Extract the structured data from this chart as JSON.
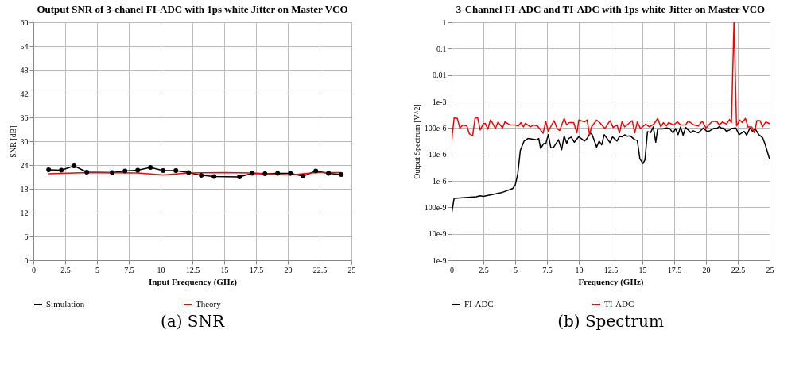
{
  "chart_data": [
    {
      "type": "line",
      "title": "Output SNR of 3-chanel FI-ADC with 1ps white Jitter on Master VCO",
      "xlabel": "Input Frequency (GHz)",
      "ylabel": "SNR [dB]",
      "xlim": [
        0,
        25
      ],
      "xticks": [
        0,
        2.5,
        5,
        7.5,
        10,
        12.5,
        15,
        17.5,
        20,
        22.5,
        25
      ],
      "ylim": [
        0,
        60
      ],
      "yticks": [
        0,
        6,
        12,
        18,
        24,
        30,
        36,
        42,
        48,
        54,
        60
      ],
      "grid": true,
      "legend": "bottom",
      "annotations": [
        "(a) SNR"
      ],
      "series": [
        {
          "name": "Simulation",
          "color": "#000000",
          "marker": "circle",
          "x": [
            1.2,
            2.2,
            3.2,
            4.2,
            6.2,
            7.2,
            8.2,
            9.2,
            10.2,
            11.2,
            12.2,
            13.2,
            14.2,
            16.2,
            17.2,
            18.2,
            19.2,
            20.2,
            21.2,
            22.2,
            23.2,
            24.2
          ],
          "values": [
            22.8,
            22.7,
            23.8,
            22.2,
            22.1,
            22.5,
            22.7,
            23.4,
            22.6,
            22.6,
            22.1,
            21.4,
            21.1,
            21.0,
            21.9,
            21.8,
            21.9,
            21.9,
            21.2,
            22.5,
            21.9,
            21.6
          ]
        },
        {
          "name": "Theory",
          "color": "#ff0000",
          "marker": "none",
          "x": [
            1.2,
            4.2,
            8.2,
            10.2,
            12.2,
            15,
            17.2,
            20.2,
            22.2,
            24.2
          ],
          "values": [
            21.8,
            22.1,
            22.0,
            21.5,
            22.0,
            22.1,
            22.0,
            21.5,
            22.1,
            22.1
          ]
        }
      ]
    },
    {
      "type": "line",
      "title": "3-Channel FI-ADC and TI-ADC with 1ps white Jitter on Master VCO",
      "xlabel": "Frequency (GHz)",
      "ylabel": "Output Spectrum [V^2]",
      "log": "y",
      "xlim": [
        0,
        25
      ],
      "xticks": [
        0,
        2.5,
        5,
        7.5,
        10,
        12.5,
        15,
        17.5,
        20,
        22.5,
        25
      ],
      "ylim": [
        1e-09,
        1
      ],
      "yticks": [
        {
          "value": 1e-09,
          "label": "1e-9"
        },
        {
          "value": 1e-08,
          "label": "10e-9"
        },
        {
          "value": 1e-07,
          "label": "100e-9"
        },
        {
          "value": 1e-06,
          "label": "1e-6"
        },
        {
          "value": 1e-05,
          "label": "10e-6"
        },
        {
          "value": 0.0001,
          "label": "100e-6"
        },
        {
          "value": 0.001,
          "label": "1e-3"
        },
        0.01,
        0.1,
        1
      ],
      "grid": true,
      "legend": "bottom",
      "annotations": [
        "(b) Spectrum"
      ],
      "series": [
        {
          "name": "FI-ADC",
          "color": "#000000",
          "x": [
            0,
            0.2,
            1.95,
            2.23,
            2.5,
            4.0,
            4.8,
            5.0,
            5.2,
            5.4,
            5.7,
            6.0,
            6.5,
            6.7,
            6.85,
            7.0,
            7.25,
            7.4,
            7.6,
            7.8,
            8.0,
            8.4,
            8.65,
            8.85,
            9.05,
            9.2,
            9.4,
            9.65,
            10.0,
            10.45,
            10.65,
            10.9,
            11.05,
            11.4,
            11.6,
            11.8,
            12.0,
            12.45,
            12.65,
            13.0,
            13.2,
            13.4,
            13.6,
            13.8,
            14.05,
            14.4,
            14.6,
            14.8,
            15.05,
            15.2,
            15.4,
            15.65,
            15.85,
            16.05,
            16.2,
            16.6,
            16.9,
            17.15,
            17.4,
            17.6,
            17.8,
            18.0,
            18.2,
            18.4,
            18.8,
            19.0,
            19.4,
            19.8,
            20.05,
            20.3,
            20.6,
            20.85,
            21.05,
            21.2,
            21.4,
            21.6,
            21.85,
            22.0,
            22.35,
            22.6,
            23.0,
            23.2,
            23.45,
            23.65,
            23.85,
            24.15,
            24.45,
            24.65,
            25
          ],
          "values": [
            5.5e-08,
            2.2e-07,
            2.5e-07,
            2.75e-07,
            2.6e-07,
            3.7e-07,
            5.1e-07,
            6.9e-07,
            1.8e-06,
            1.4e-05,
            3.2e-05,
            4e-05,
            3.7e-05,
            3.5e-05,
            4e-05,
            1.7e-05,
            2.6e-05,
            2.5e-05,
            5.6e-05,
            1.8e-05,
            1.8e-05,
            3.6e-05,
            1.5e-05,
            5e-05,
            2.6e-05,
            4e-05,
            4.5e-05,
            2.9e-05,
            4.7e-05,
            3.2e-05,
            4e-05,
            6.5e-05,
            5.6e-05,
            1.9e-05,
            3.2e-05,
            2.3e-05,
            5.6e-05,
            2.8e-05,
            4.6e-05,
            3.2e-05,
            4.8e-05,
            4.6e-05,
            5.5e-05,
            4.9e-05,
            5e-05,
            3.6e-05,
            3.4e-05,
            6.9e-06,
            4.5e-06,
            6.3e-06,
            7.3e-05,
            6.7e-05,
            0.00011,
            2.9e-05,
            9.3e-05,
            9.3e-05,
            0.0001,
            9.5e-05,
            6.5e-05,
            9.5e-05,
            5.6e-05,
            0.00011,
            5.3e-05,
            0.000105,
            6.7e-05,
            7.8e-05,
            6.5e-05,
            0.0001,
            7.5e-05,
            7.8e-05,
            9.7e-05,
            9.5e-05,
            0.000115,
            0.0001,
            9.9e-05,
            7.5e-05,
            8.4e-05,
            9.5e-05,
            0.0001,
            5.5e-05,
            7.4e-05,
            5.3e-05,
            0.0001,
            7.5e-05,
            9.5e-05,
            5.6e-05,
            4.3e-05,
            2.4e-05,
            6.5e-06
          ]
        },
        {
          "name": "TI-ADC",
          "color": "#ff0000",
          "x": [
            0,
            0.2,
            0.45,
            0.65,
            0.9,
            1.2,
            1.4,
            1.65,
            1.85,
            2.05,
            2.25,
            2.5,
            2.65,
            2.85,
            3.05,
            3.2,
            3.45,
            3.65,
            4.0,
            4.2,
            4.6,
            5.0,
            5.25,
            5.45,
            5.65,
            5.8,
            6.2,
            6.45,
            6.75,
            7.2,
            7.4,
            7.6,
            8.05,
            8.3,
            8.5,
            8.85,
            9.05,
            9.25,
            9.6,
            9.85,
            10.0,
            10.45,
            10.65,
            10.85,
            11.0,
            11.4,
            11.65,
            12.05,
            12.45,
            12.7,
            13.0,
            13.2,
            13.4,
            13.6,
            14.2,
            14.4,
            14.6,
            14.85,
            15.25,
            15.55,
            15.9,
            16.2,
            16.45,
            16.65,
            16.9,
            17.05,
            17.45,
            17.75,
            18.0,
            18.4,
            18.6,
            19.05,
            19.4,
            19.7,
            20.0,
            20.5,
            20.85,
            21.05,
            21.3,
            21.6,
            21.85,
            22.0,
            22.2,
            22.4,
            22.65,
            22.85,
            23.1,
            23.3,
            23.6,
            23.8,
            24.0,
            24.25,
            24.45,
            24.7,
            25
          ],
          "values": [
            3.1e-05,
            0.00024,
            0.00023,
            0.0001,
            0.00013,
            0.00012,
            6e-05,
            5e-05,
            0.00024,
            0.00024,
            8.4e-05,
            0.000145,
            0.00015,
            9e-05,
            0.0002,
            0.00016,
            9.5e-05,
            0.00017,
            0.0001,
            0.00017,
            0.00013,
            0.00013,
            0.00012,
            0.00016,
            0.00011,
            0.00015,
            0.00011,
            0.00013,
            0.00012,
            6.3e-05,
            0.00018,
            7.5e-05,
            0.00019,
            9.5e-05,
            8e-05,
            0.00023,
            0.00013,
            0.00016,
            0.00016,
            6.5e-05,
            0.0002,
            0.00017,
            0.0002,
            5.6e-05,
            0.00011,
            0.0002,
            0.00016,
            9.5e-05,
            0.00019,
            0.000105,
            0.00013,
            6.5e-05,
            0.00018,
            0.00011,
            0.00019,
            6.5e-05,
            0.00017,
            9.4e-05,
            0.00014,
            0.00011,
            0.00014,
            0.00023,
            0.00011,
            0.00016,
            0.00012,
            0.00016,
            0.00013,
            0.00017,
            0.00013,
            0.00013,
            0.000185,
            0.00013,
            0.00012,
            0.00018,
            0.0001,
            0.00018,
            0.000175,
            0.00013,
            0.00017,
            0.00014,
            0.00021,
            0.00016,
            1,
            0.00012,
            0.0002,
            0.00016,
            0.00023,
            0.00011,
            0.00011,
            6.5e-05,
            0.00019,
            0.00019,
            0.00011,
            0.00017,
            0.000145
          ]
        }
      ]
    }
  ]
}
